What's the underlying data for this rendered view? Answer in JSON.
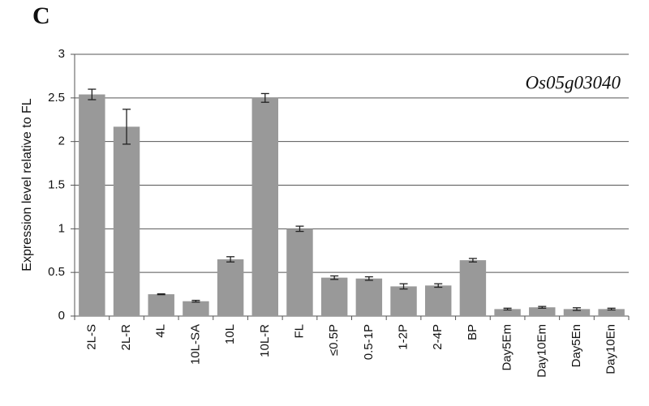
{
  "panel_label": "C",
  "chart_data": {
    "type": "bar",
    "annotation": "Os05g03040",
    "y_label": "Expression level relative to FL",
    "categories": [
      "2L-S",
      "2L-R",
      "4L",
      "10L-SA",
      "10L",
      "10L-R",
      "FL",
      "≤0.5P",
      "0.5-1P",
      "1-2P",
      "2-4P",
      "BP",
      "Day5Em",
      "Day10Em",
      "Day5En",
      "Day10En"
    ],
    "values": [
      2.54,
      2.17,
      0.25,
      0.17,
      0.65,
      2.5,
      1.0,
      0.44,
      0.43,
      0.34,
      0.35,
      0.64,
      0.08,
      0.1,
      0.08,
      0.08
    ],
    "errors": [
      0.06,
      0.2,
      0.005,
      0.01,
      0.03,
      0.05,
      0.03,
      0.02,
      0.02,
      0.03,
      0.02,
      0.02,
      0.01,
      0.01,
      0.015,
      0.01
    ],
    "color": "#999999",
    "ylim": [
      0,
      3
    ],
    "yticks": [
      0,
      0.5,
      1,
      1.5,
      2,
      2.5,
      3
    ],
    "grid": true
  }
}
